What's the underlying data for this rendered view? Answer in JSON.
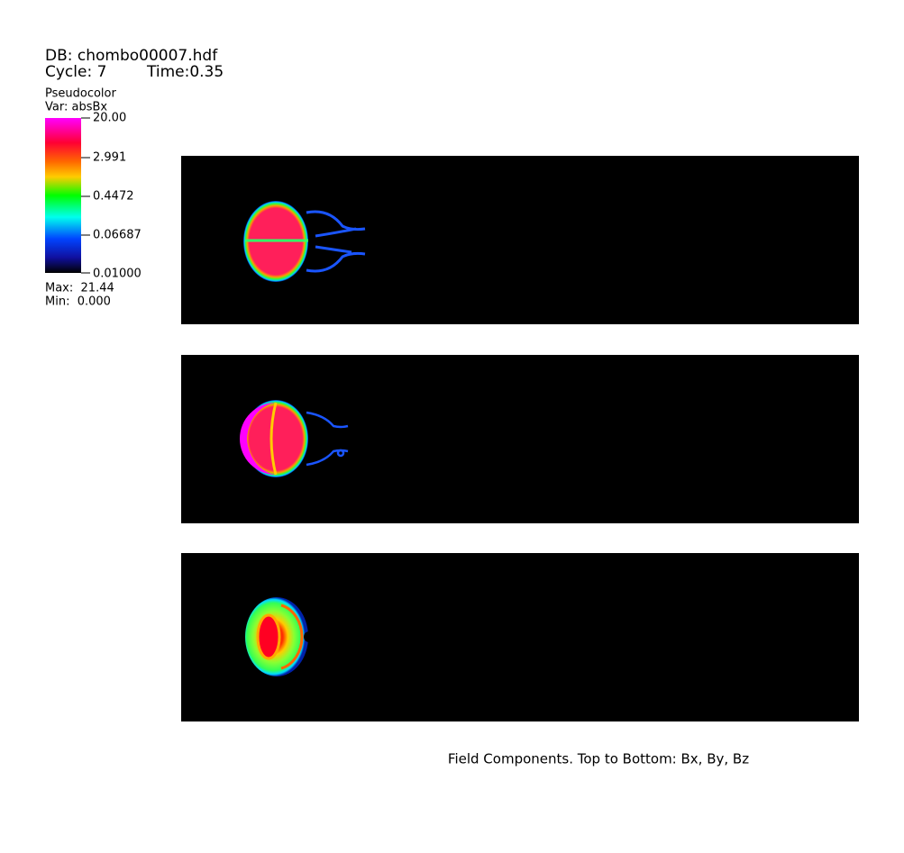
{
  "header": {
    "database": "DB: chombo00007.hdf",
    "cycle": "Cycle: 7",
    "time": "Time:0.35"
  },
  "legend": {
    "plot": "Pseudocolor",
    "variable": "Var: absBx",
    "ticks": [
      "20.00",
      "2.991",
      "0.4472",
      "0.06687",
      "0.01000"
    ],
    "max": "Max:  21.44",
    "min": "Min:  0.000"
  },
  "caption": "Field Components. Top to Bottom: Bx, By, Bz"
}
